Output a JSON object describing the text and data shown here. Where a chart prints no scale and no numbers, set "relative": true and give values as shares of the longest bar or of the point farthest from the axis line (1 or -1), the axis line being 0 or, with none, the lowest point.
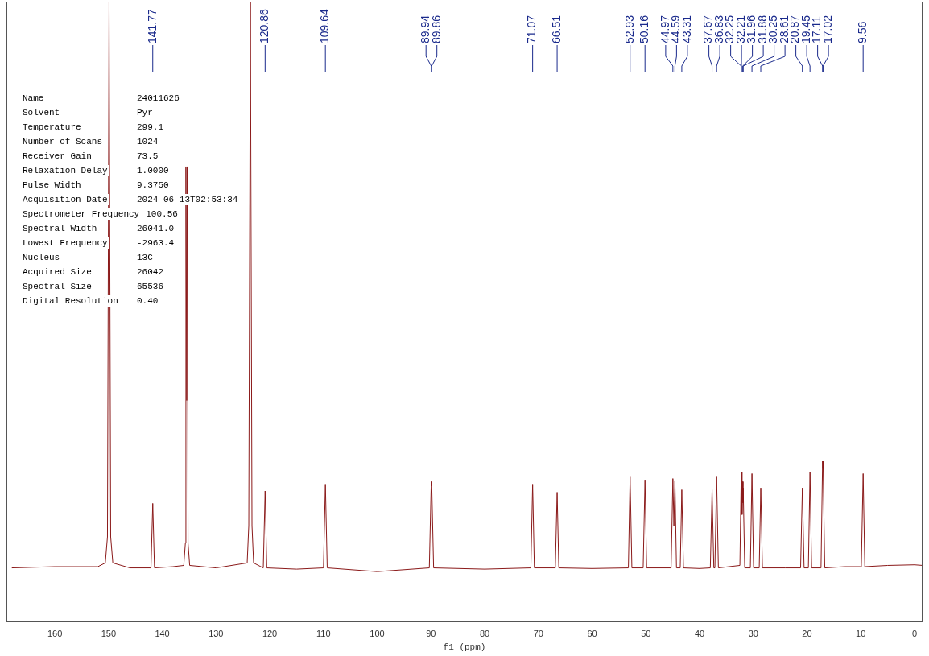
{
  "chart_data": {
    "type": "line",
    "relative": true,
    "xlabel": "f1 (ppm)",
    "xlim": [
      169,
      -1.5
    ],
    "xticks": [
      160,
      150,
      140,
      130,
      120,
      110,
      100,
      90,
      80,
      70,
      60,
      50,
      40,
      30,
      20,
      10,
      0
    ],
    "grid": false,
    "legend": false,
    "marker": "none",
    "line_style": "solid",
    "tick_labels": "x",
    "series": [
      {
        "color": "#8b1a1a",
        "x": [
          168,
          160,
          152,
          150.6,
          150.2,
          149.9,
          149.6,
          149.2,
          146,
          142.1,
          141.77,
          141.45,
          138,
          136.0,
          135.7,
          135.6,
          135.45,
          135.35,
          135.2,
          134.9,
          130,
          124.2,
          123.9,
          123.6,
          123.3,
          123.0,
          121.2,
          120.86,
          120.55,
          115,
          110.0,
          109.64,
          109.3,
          100,
          90.3,
          89.94,
          89.9,
          89.86,
          89.5,
          80,
          71.4,
          71.07,
          70.75,
          66.85,
          66.51,
          66.2,
          60,
          53.25,
          52.93,
          52.6,
          50.5,
          50.16,
          49.85,
          45.3,
          44.97,
          44.78,
          44.59,
          44.3,
          43.6,
          43.31,
          43.0,
          40,
          38.0,
          37.67,
          37.35,
          37.15,
          36.83,
          36.5,
          32.5,
          32.25,
          32.21,
          32.1,
          31.96,
          31.92,
          31.88,
          31.6,
          30.55,
          30.25,
          29.95,
          28.9,
          28.61,
          28.3,
          24,
          21.2,
          20.87,
          20.55,
          19.75,
          19.45,
          19.15,
          17.4,
          17.11,
          17.06,
          17.02,
          16.7,
          13,
          9.9,
          9.56,
          9.25,
          5,
          0,
          -1.5
        ],
        "values": [
          0.087,
          0.089,
          0.089,
          0.095,
          0.137,
          1,
          0.137,
          0.095,
          0.087,
          0.087,
          0.191,
          0.087,
          0.089,
          0.091,
          0.127,
          0.734,
          0.357,
          0.734,
          0.127,
          0.091,
          0.087,
          0.095,
          0.155,
          1,
          0.155,
          0.095,
          0.087,
          0.211,
          0.087,
          0.085,
          0.087,
          0.222,
          0.087,
          0.081,
          0.087,
          0.226,
          0.219,
          0.226,
          0.087,
          0.085,
          0.087,
          0.222,
          0.087,
          0.087,
          0.209,
          0.087,
          0.086,
          0.087,
          0.235,
          0.087,
          0.087,
          0.229,
          0.087,
          0.087,
          0.231,
          0.155,
          0.228,
          0.087,
          0.087,
          0.213,
          0.087,
          0.086,
          0.087,
          0.213,
          0.087,
          0.087,
          0.235,
          0.087,
          0.091,
          0.241,
          0.241,
          0.173,
          0.226,
          0.192,
          0.216,
          0.087,
          0.087,
          0.239,
          0.087,
          0.087,
          0.216,
          0.087,
          0.087,
          0.087,
          0.216,
          0.087,
          0.087,
          0.241,
          0.087,
          0.087,
          0.259,
          0.247,
          0.259,
          0.087,
          0.089,
          0.089,
          0.239,
          0.089,
          0.091,
          0.092,
          0.091
        ]
      }
    ],
    "annotations": [
      {
        "text": "141.77",
        "x": 141.77
      },
      {
        "text": "120.86",
        "x": 120.86
      },
      {
        "text": "109.64",
        "x": 109.64
      },
      {
        "text": "89.94",
        "x": 89.94
      },
      {
        "text": "89.86",
        "x": 89.86
      },
      {
        "text": "71.07",
        "x": 71.07
      },
      {
        "text": "66.51",
        "x": 66.51
      },
      {
        "text": "52.93",
        "x": 52.93
      },
      {
        "text": "50.16",
        "x": 50.16
      },
      {
        "text": "44.97",
        "x": 44.97
      },
      {
        "text": "44.59",
        "x": 44.59
      },
      {
        "text": "43.31",
        "x": 43.31
      },
      {
        "text": "37.67",
        "x": 37.67
      },
      {
        "text": "36.83",
        "x": 36.83
      },
      {
        "text": "32.25",
        "x": 32.25
      },
      {
        "text": "32.21",
        "x": 32.21
      },
      {
        "text": "31.96",
        "x": 31.96
      },
      {
        "text": "31.88",
        "x": 31.88
      },
      {
        "text": "30.25",
        "x": 30.25
      },
      {
        "text": "28.61",
        "x": 28.61
      },
      {
        "text": "20.87",
        "x": 20.87
      },
      {
        "text": "19.45",
        "x": 19.45
      },
      {
        "text": "17.11",
        "x": 17.11
      },
      {
        "text": "17.02",
        "x": 17.02
      },
      {
        "text": "9.56",
        "x": 9.56
      },
      "Name\t24011626",
      "Solvent\tPyr",
      "Temperature\t299.1",
      "Number of Scans\t1024",
      "Receiver Gain\t73.5",
      "Relaxation Delay\t1.0000",
      "Pulse Width\t9.3750",
      "Acquisition Date\t2024-06-13T02:53:34",
      "Spectrometer Frequency\t100.56",
      "Spectral Width\t26041.0",
      "Lowest Frequency\t-2963.4",
      "Nucleus\t13C",
      "Acquired Size\t26042",
      "Spectral Size\t65536",
      "Digital Resolution\t0.40"
    ]
  }
}
